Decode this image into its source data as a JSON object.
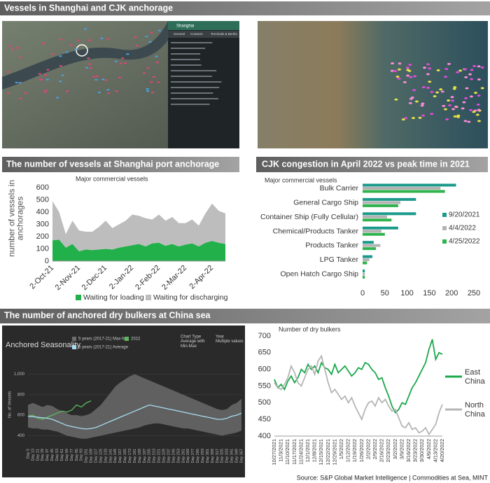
{
  "headings": [
    "Vessels in Shanghai and CJK anchorage",
    "The number of vessels at Shanghai port anchorage",
    "CJK congestion in April 2022 vs peak time in 2021",
    "The number of anchored dry bulkers at China sea"
  ],
  "map": {
    "panel_title": "Shanghai",
    "tabs": [
      "General",
      "Contacts",
      "Terminals & Berths"
    ]
  },
  "source": "Source: S&P Global Market Intelligence | Commodities at Sea, MINT",
  "chart_data": [
    {
      "type": "area",
      "stacked": true,
      "subtitle": "Major commercial vessels",
      "ylabel": "number of vessels in anchorages",
      "categories": [
        "2-Oct-21",
        null,
        null,
        null,
        "2-Nov-21",
        null,
        null,
        null,
        "2-Dec-21",
        null,
        null,
        null,
        "2-Jan-22",
        null,
        null,
        null,
        "2-Feb-22",
        null,
        null,
        null,
        "2-Mar-22",
        null,
        null,
        null,
        "2-Apr-22",
        null,
        null
      ],
      "series": [
        {
          "name": "Waiting for loading",
          "color": "#22b04b",
          "values": [
            170,
            175,
            110,
            140,
            80,
            95,
            90,
            95,
            100,
            95,
            110,
            120,
            130,
            140,
            120,
            145,
            150,
            125,
            140,
            120,
            135,
            145,
            120,
            150,
            165,
            150,
            140
          ]
        },
        {
          "name": "Waiting for discharging",
          "color": "#bdbdbd",
          "values": [
            320,
            225,
            110,
            190,
            170,
            145,
            150,
            185,
            230,
            175,
            190,
            210,
            250,
            230,
            230,
            195,
            230,
            205,
            220,
            190,
            175,
            195,
            170,
            240,
            305,
            260,
            250
          ]
        }
      ],
      "ylim": [
        0,
        600
      ],
      "yticks": [
        0,
        100,
        200,
        300,
        400,
        500,
        600
      ],
      "grid": false,
      "legend": "bottom"
    },
    {
      "type": "bar",
      "orientation": "horizontal",
      "subtitle": "Major commercial vessels",
      "categories": [
        "Bulk Carrier",
        "General Cargo Ship",
        "Container Ship (Fully Cellular)",
        "Chemical/Products Tanker",
        "Products Tanker",
        "LPG Tanker",
        "Open Hatch Cargo Ship"
      ],
      "series": [
        {
          "name": "9/20/2021",
          "color": "#1b9a8c",
          "values": [
            210,
            120,
            120,
            80,
            25,
            22,
            5
          ]
        },
        {
          "name": "4/4/2022",
          "color": "#b3b3b3",
          "values": [
            175,
            85,
            55,
            42,
            40,
            15,
            5
          ]
        },
        {
          "name": "4/25/2022",
          "color": "#2fb34c",
          "values": [
            185,
            80,
            65,
            50,
            30,
            10,
            5
          ]
        }
      ],
      "xlim": [
        0,
        250
      ],
      "xticks": [
        0,
        50,
        100,
        150,
        200,
        250
      ],
      "grid": false,
      "legend": "right"
    },
    {
      "type": "line",
      "title": "Anchored Seasonality",
      "ylabel": "No. of Vessels",
      "controls": [
        {
          "label": "Chart Type",
          "value": "Average with Min-Max"
        },
        {
          "label": "Year",
          "value": "Multiple values"
        }
      ],
      "categories": [
        "Day 5",
        "Day 13",
        "Day 21",
        "Day 29",
        "Day 37",
        "Day 45",
        "Day 53",
        "Day 61",
        "Day 69",
        "Day 77",
        "Day 85",
        "Day 93",
        "Day 101",
        "Day 109",
        "Day 117",
        "Day 125",
        "Day 133",
        "Day 141",
        "Day 149",
        "Day 157",
        "Day 165",
        "Day 173",
        "Day 181",
        "Day 189",
        "Day 197",
        "Day 205",
        "Day 213",
        "Day 221",
        "Day 229",
        "Day 237",
        "Day 245",
        "Day 253",
        "Day 261",
        "Day 269",
        "Day 277",
        "Day 285",
        "Day 293",
        "Day 301",
        "Day 309",
        "Day 317",
        "Day 325",
        "Day 333",
        "Day 341",
        "Day 349",
        "Day 357"
      ],
      "series": [
        {
          "name": "5 years (2017-21) Max-Min",
          "color": "#6e6e6e",
          "kind": "band",
          "upper": [
            700,
            720,
            700,
            680,
            700,
            690,
            660,
            640,
            620,
            600,
            600,
            590,
            600,
            620,
            660,
            700,
            760,
            820,
            880,
            920,
            950,
            980,
            1000,
            980,
            960,
            940,
            920,
            900,
            880,
            860,
            840,
            820,
            800,
            780,
            760,
            740,
            720,
            700,
            680,
            660,
            650,
            660,
            700,
            720,
            760
          ],
          "lower": [
            480,
            470,
            470,
            460,
            460,
            450,
            440,
            420,
            400,
            390,
            380,
            370,
            370,
            380,
            390,
            400,
            410,
            420,
            430,
            440,
            450,
            460,
            470,
            480,
            500,
            510,
            520,
            520,
            510,
            500,
            490,
            480,
            470,
            470,
            460,
            450,
            440,
            430,
            420,
            410,
            400,
            410,
            420,
            430,
            450
          ]
        },
        {
          "name": "2022",
          "color": "#5cb85c",
          "values": [
            590,
            600,
            570,
            560,
            580,
            600,
            620,
            640,
            630,
            650,
            700,
            680,
            720,
            740,
            null,
            null,
            null,
            null,
            null,
            null,
            null,
            null,
            null,
            null,
            null,
            null,
            null,
            null,
            null,
            null,
            null,
            null,
            null,
            null,
            null,
            null,
            null,
            null,
            null,
            null,
            null,
            null,
            null,
            null,
            null
          ]
        },
        {
          "name": "5 years (2017-21) Average",
          "color": "#a6dcf0",
          "values": [
            590,
            585,
            580,
            575,
            570,
            560,
            540,
            520,
            500,
            490,
            480,
            470,
            465,
            470,
            480,
            500,
            520,
            540,
            560,
            580,
            600,
            620,
            640,
            660,
            680,
            700,
            690,
            680,
            670,
            660,
            650,
            640,
            630,
            620,
            610,
            600,
            590,
            580,
            570,
            560,
            560,
            570,
            590,
            600,
            620
          ]
        }
      ],
      "ylim": [
        300,
        1100
      ],
      "yticks": [
        400,
        600,
        800,
        {
          "value": 1000,
          "label": "1,000"
        }
      ],
      "grid": true,
      "legend": "top"
    },
    {
      "type": "line",
      "subtitle": "Number of dry bulkers",
      "categories": [
        "10/27/2021",
        null,
        "11/3/2021",
        null,
        "11/10/2021",
        null,
        "11/17/2021",
        null,
        "11/24/2021",
        null,
        "12/1/2021",
        null,
        "12/8/2021",
        null,
        "12/15/2021",
        null,
        "12/22/2021",
        null,
        "12/29/2021",
        null,
        "1/5/2022",
        null,
        "1/12/2022",
        null,
        "1/19/2022",
        null,
        "1/26/2022",
        null,
        "2/2/2022",
        null,
        "2/9/2022",
        null,
        "2/16/2022",
        null,
        "2/23/2022",
        null,
        "3/2/2022",
        null,
        "3/9/2022",
        null,
        "3/16/2022",
        null,
        "3/23/2022",
        null,
        "3/30/2022",
        null,
        "4/6/2022",
        null,
        "4/13/2022",
        null,
        "4/20/2022"
      ],
      "series": [
        {
          "name": "East China",
          "color": "#1aa84a",
          "values": [
            570,
            545,
            555,
            540,
            565,
            580,
            560,
            575,
            600,
            590,
            615,
            600,
            610,
            590,
            620,
            605,
            600,
            585,
            615,
            590,
            600,
            610,
            595,
            580,
            590,
            605,
            600,
            620,
            615,
            600,
            590,
            570,
            575,
            545,
            520,
            490,
            470,
            480,
            500,
            495,
            520,
            545,
            560,
            580,
            600,
            620,
            660,
            690,
            630,
            650,
            645
          ]
        },
        {
          "name": "North China",
          "color": "#b5b5b5",
          "values": [
            560,
            545,
            540,
            555,
            575,
            610,
            590,
            560,
            550,
            575,
            600,
            610,
            585,
            625,
            640,
            600,
            560,
            530,
            540,
            525,
            510,
            520,
            500,
            515,
            490,
            470,
            450,
            480,
            500,
            505,
            490,
            515,
            500,
            510,
            490,
            475,
            480,
            455,
            430,
            425,
            440,
            420,
            425,
            410,
            415,
            425,
            405,
            420,
            435,
            470,
            495
          ]
        }
      ],
      "ylim": [
        400,
        700
      ],
      "yticks": [
        400,
        450,
        500,
        550,
        600,
        650,
        700
      ],
      "grid": false,
      "legend": "right"
    }
  ]
}
